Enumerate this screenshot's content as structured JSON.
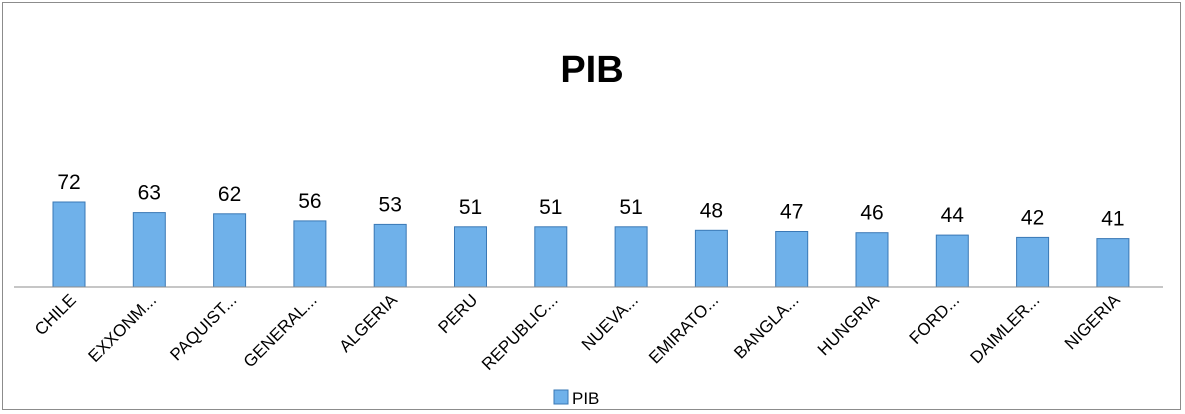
{
  "chart_data": {
    "type": "bar",
    "title": "PIB",
    "categories": [
      "CHILE",
      "EXXONM...",
      "PAQUIST...",
      "GENERAL...",
      "ALGERIA",
      "PERU",
      "REPUBLIC...",
      "NUEVA...",
      "EMIRATO...",
      "BANGLA...",
      "HUNGRIA",
      "FORD...",
      "DAIMLER...",
      "NIGERIA"
    ],
    "series": [
      {
        "name": "PIB",
        "values": [
          72,
          63,
          62,
          56,
          53,
          51,
          51,
          51,
          48,
          47,
          46,
          44,
          42,
          41
        ]
      }
    ],
    "xlabel": "",
    "ylabel": "",
    "ylim": [
      0,
      72
    ],
    "grid": false,
    "legend": "bottom",
    "colors": {
      "bar_fill": "#6fb1ea",
      "bar_stroke": "#3a78b5",
      "axis": "#8c8c8c"
    }
  }
}
